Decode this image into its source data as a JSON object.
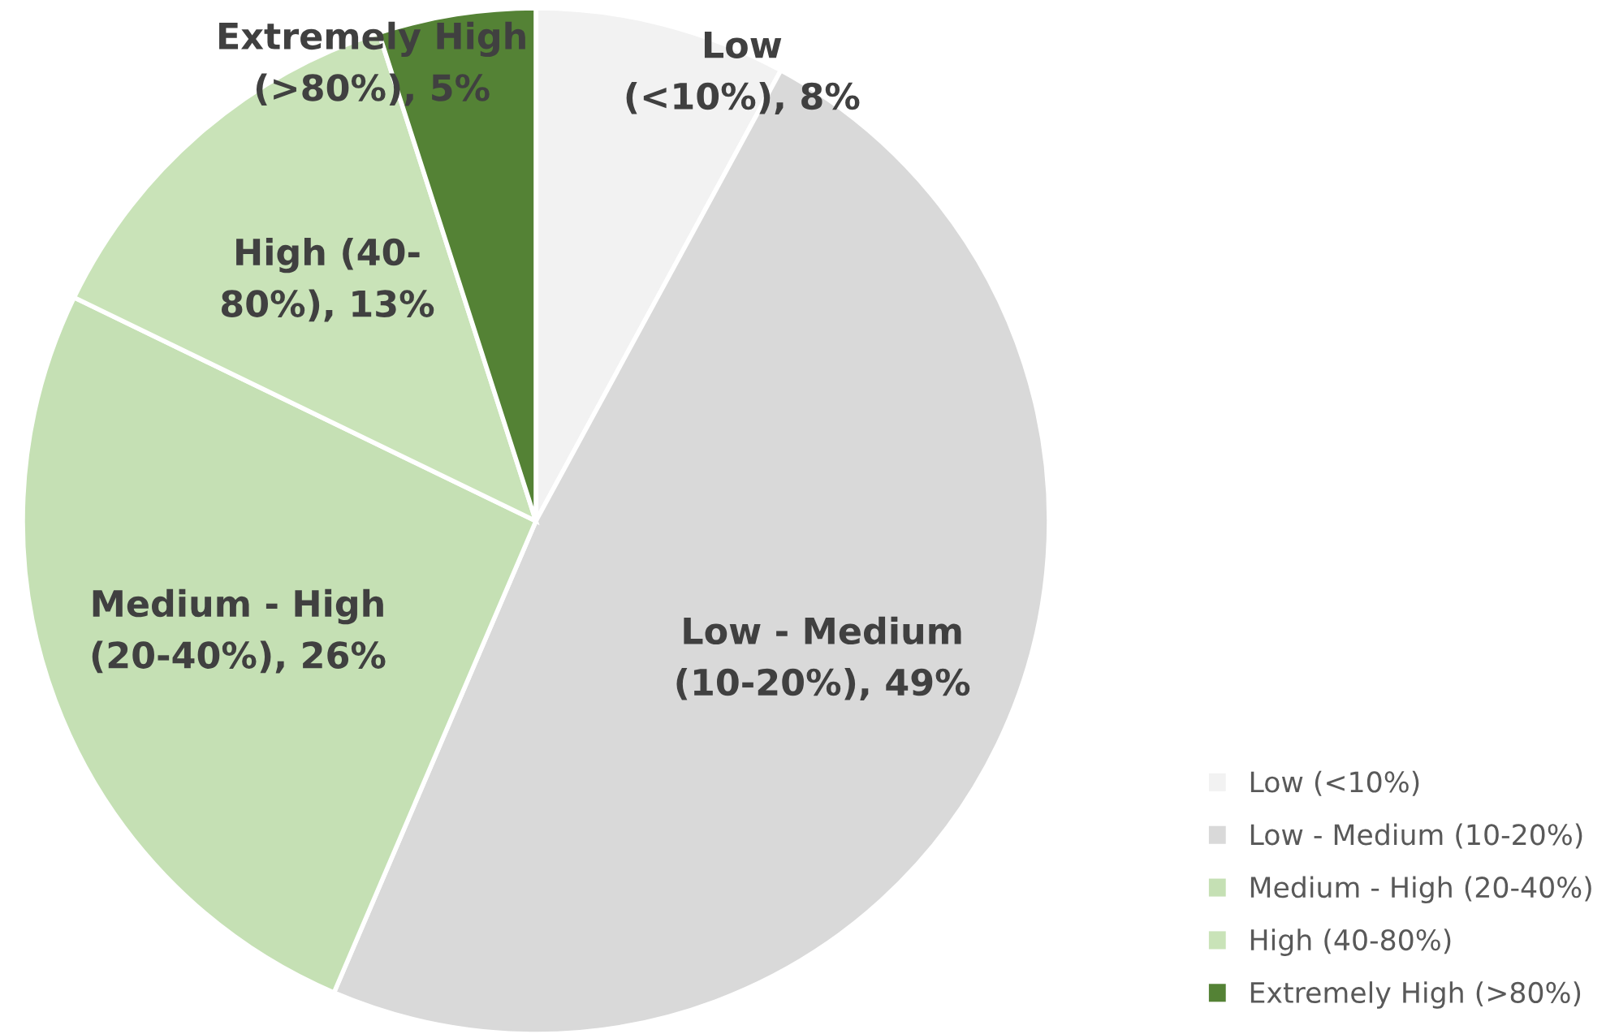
{
  "chart_data": {
    "type": "pie",
    "categories": [
      "Low (<10%)",
      "Low - Medium (10-20%)",
      "Medium - High (20-40%)",
      "High (40-80%)",
      "Extremely High (>80%)"
    ],
    "values": [
      8,
      49,
      26,
      13,
      5
    ],
    "colors": [
      "#f2f2f2",
      "#d9d9d9",
      "#c5e0b4",
      "#c9e3b8",
      "#548235"
    ],
    "value_labels": [
      "Low\n(<10%), 8%",
      "Low - Medium\n(10-20%), 49%",
      "Medium - High\n(20-40%), 26%",
      "High (40-\n80%), 13%",
      "Extremely High\n(>80%), 5%"
    ],
    "legend": "bottom right"
  }
}
